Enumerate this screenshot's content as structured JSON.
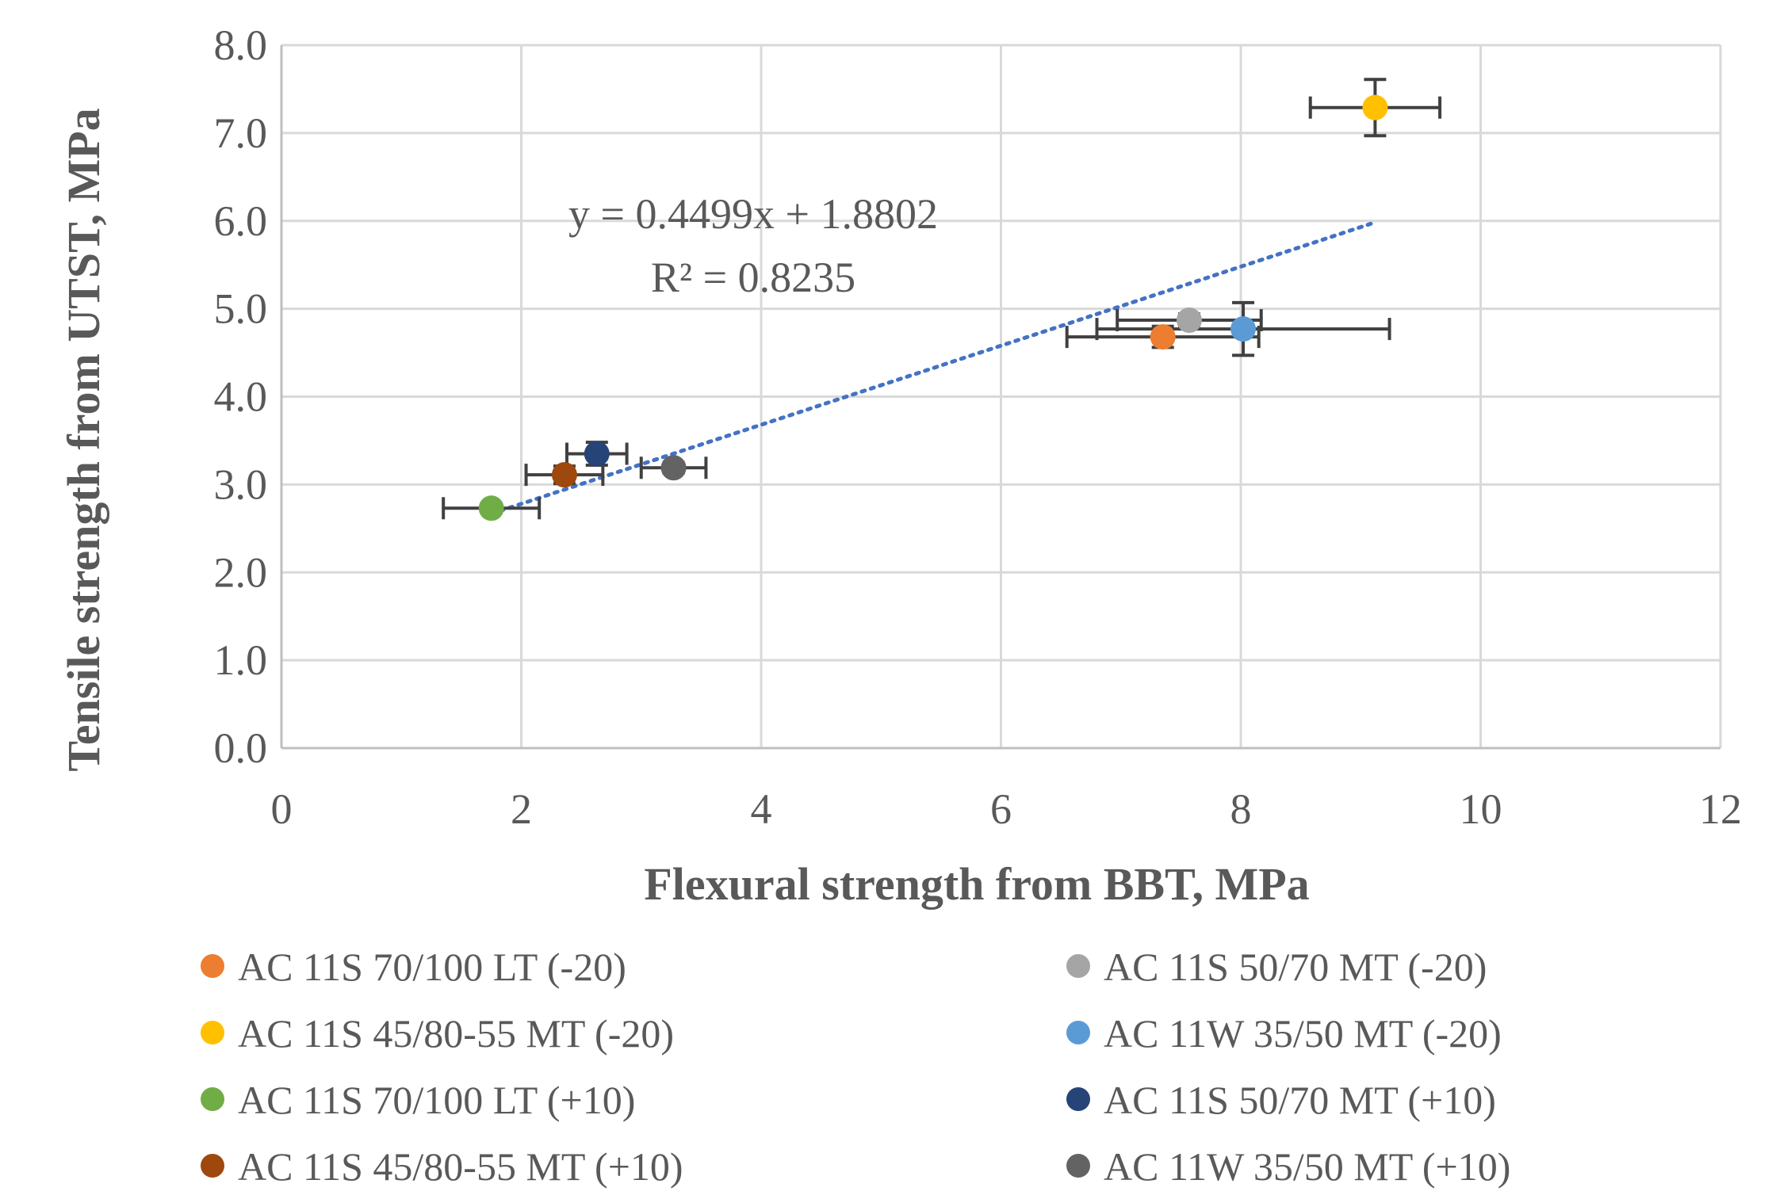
{
  "chart_data": {
    "type": "scatter",
    "xlabel": "Flexural strength from BBT, MPa",
    "ylabel": "Tensile strength from UTST, MPa",
    "xlim": [
      0,
      12
    ],
    "ylim": [
      0,
      8
    ],
    "xticks": [
      0,
      2,
      4,
      6,
      8,
      10,
      12
    ],
    "yticks": [
      0,
      1,
      2,
      3,
      4,
      5,
      6,
      7,
      8
    ],
    "xtick_labels": [
      "0",
      "2",
      "4",
      "6",
      "8",
      "10",
      "12"
    ],
    "ytick_labels": [
      "0.0",
      "1.0",
      "2.0",
      "3.0",
      "4.0",
      "5.0",
      "6.0",
      "7.0",
      "8.0"
    ],
    "grid": true,
    "legend_position": "bottom",
    "series": [
      {
        "name": "AC 11S 70/100 LT (-20)",
        "color": "#ED7D31",
        "x": 7.35,
        "y": 4.68,
        "xerr": 0.8,
        "yerr": 0.12
      },
      {
        "name": "AC 11S 50/70 MT (-20)",
        "color": "#A5A5A5",
        "x": 7.57,
        "y": 4.87,
        "xerr": 0.6,
        "yerr": 0.07
      },
      {
        "name": "AC 11S 45/80-55 MT (-20)",
        "color": "#FFC000",
        "x": 9.12,
        "y": 7.29,
        "xerr": 0.54,
        "yerr": 0.32
      },
      {
        "name": "AC 11W 35/50 MT (-20)",
        "color": "#5B9BD5",
        "x": 8.02,
        "y": 4.77,
        "xerr": 1.22,
        "yerr": 0.3
      },
      {
        "name": "AC 11S 70/100 LT (+10)",
        "color": "#70AD47",
        "x": 1.75,
        "y": 2.73,
        "xerr": 0.4,
        "yerr": 0.04
      },
      {
        "name": "AC 11S 50/70 MT (+10)",
        "color": "#264478",
        "x": 2.63,
        "y": 3.35,
        "xerr": 0.25,
        "yerr": 0.13
      },
      {
        "name": "AC 11S 45/80-55 MT (+10)",
        "color": "#9E480E",
        "x": 2.36,
        "y": 3.11,
        "xerr": 0.32,
        "yerr": 0.1
      },
      {
        "name": "AC 11W 35/50 MT (+10)",
        "color": "#636363",
        "x": 3.27,
        "y": 3.19,
        "xerr": 0.27,
        "yerr": 0.06
      }
    ],
    "trendline": {
      "type": "linear",
      "slope": 0.4499,
      "intercept": 1.8802,
      "x_start": 1.75,
      "x_end": 9.12,
      "equation": "y = 0.4499x + 1.8802",
      "r_squared": "R² = 0.8235",
      "color": "#4472C4"
    }
  }
}
